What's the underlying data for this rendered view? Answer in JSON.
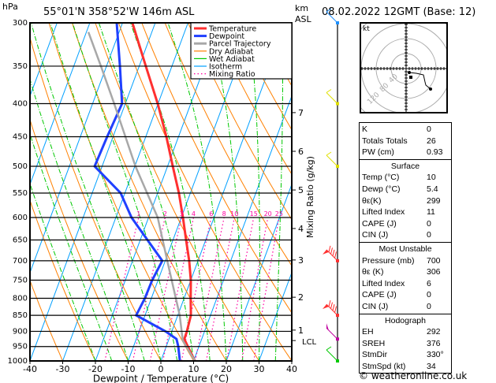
{
  "header": {
    "hpa": "hPa",
    "location": "55°01'N  358°52'W  146m  ASL",
    "km": "km",
    "asl": "ASL",
    "date": "08.02.2022 12GMT (Base: 12)"
  },
  "chart_data": {
    "type": "line",
    "subtype": "skew-T log-P",
    "xlabel": "Dewpoint / Temperature (°C)",
    "ylabel": "hPa",
    "right_label": "Mixing Ratio (g/kg)",
    "xlim": [
      -40,
      40
    ],
    "ylim": [
      1000,
      300
    ],
    "x_ticks": [
      -40,
      -30,
      -20,
      -10,
      0,
      10,
      20,
      30,
      40
    ],
    "pressure_ticks": [
      300,
      350,
      400,
      450,
      500,
      550,
      600,
      650,
      700,
      750,
      800,
      850,
      900,
      950,
      1000
    ],
    "km_ticks": [
      {
        "km": "1",
        "p": 896
      },
      {
        "km": "2",
        "p": 797
      },
      {
        "km": "3",
        "p": 698
      },
      {
        "km": "4",
        "p": 624
      },
      {
        "km": "5",
        "p": 544
      },
      {
        "km": "6",
        "p": 474
      },
      {
        "km": "7",
        "p": 413
      }
    ],
    "lcl": {
      "label": "LCL",
      "p": 930
    },
    "mixing_ratio_labels": [
      1,
      2,
      3,
      4,
      6,
      8,
      10,
      15,
      20,
      25
    ],
    "legend": {
      "placement": "top-right",
      "entries": [
        {
          "name": "Temperature",
          "color": "#ff3030"
        },
        {
          "name": "Dewpoint",
          "color": "#2040ff"
        },
        {
          "name": "Parcel Trajectory",
          "color": "#a8a8a8"
        },
        {
          "name": "Dry Adiabat",
          "color": "#ff8000"
        },
        {
          "name": "Wet Adiabat",
          "color": "#00c800"
        },
        {
          "name": "Isotherm",
          "color": "#00a0ff"
        },
        {
          "name": "Mixing Ratio",
          "color": "#ff00a0"
        }
      ]
    },
    "series": [
      {
        "name": "Temperature",
        "color": "#ff3030",
        "p": [
          1000,
          950,
          925,
          900,
          850,
          800,
          750,
          700,
          650,
          600,
          550,
          500,
          450,
          400,
          350,
          300
        ],
        "t": [
          10.4,
          6.6,
          4.7,
          4.6,
          4,
          2,
          0,
          -2.7,
          -6,
          -9.5,
          -13.5,
          -18.4,
          -23.7,
          -30.1,
          -38,
          -47
        ]
      },
      {
        "name": "Dewpoint",
        "color": "#2040ff",
        "p": [
          1000,
          950,
          925,
          900,
          850,
          800,
          750,
          700,
          650,
          600,
          550,
          500,
          450,
          400,
          350,
          300
        ],
        "t": [
          5.8,
          3.7,
          2.3,
          -1.9,
          -12.7,
          -12,
          -11.8,
          -10.9,
          -17.8,
          -25.2,
          -31.3,
          -42.3,
          -41.8,
          -41,
          -45.9,
          -51.8
        ]
      },
      {
        "name": "Parcel Trajectory",
        "color": "#a8a8a8",
        "p": [
          1000,
          930,
          850,
          700,
          600,
          500,
          400,
          350,
          310
        ],
        "t": [
          10.4,
          4.4,
          0.6,
          -9.4,
          -17.2,
          -29.8,
          -43.4,
          -51.7,
          -59.4
        ]
      }
    ],
    "winds": [
      {
        "p": 300,
        "color": "#1e90ff",
        "barbs": "light"
      },
      {
        "p": 400,
        "color": "#e0e000",
        "barbs": "light"
      },
      {
        "p": 500,
        "color": "#e0e000",
        "barbs": "light"
      },
      {
        "p": 700,
        "color": "#ff3030",
        "barbs": "strong"
      },
      {
        "p": 850,
        "color": "#ff3030",
        "barbs": "strong"
      },
      {
        "p": 925,
        "color": "#c000a0",
        "barbs": "medium"
      },
      {
        "p": 1000,
        "color": "#00c800",
        "barbs": "light"
      }
    ],
    "hodograph": {
      "unit": "kt",
      "ring_labels": [
        "40",
        "80",
        "120"
      ]
    }
  },
  "stats": {
    "top": [
      {
        "k": "K",
        "v": "0"
      },
      {
        "k": "Totals Totals",
        "v": "26"
      },
      {
        "k": "PW (cm)",
        "v": "0.93"
      }
    ],
    "surface": {
      "title": "Surface",
      "rows": [
        {
          "k": "Temp (°C)",
          "v": "10"
        },
        {
          "k": "Dewp (°C)",
          "v": "5.4"
        },
        {
          "k": "θε(K)",
          "v": "299"
        },
        {
          "k": "Lifted Index",
          "v": "11"
        },
        {
          "k": "CAPE (J)",
          "v": "0"
        },
        {
          "k": "CIN (J)",
          "v": "0"
        }
      ]
    },
    "unstable": {
      "title": "Most Unstable",
      "rows": [
        {
          "k": "Pressure (mb)",
          "v": "700"
        },
        {
          "k": "θε (K)",
          "v": "306"
        },
        {
          "k": "Lifted Index",
          "v": "6"
        },
        {
          "k": "CAPE (J)",
          "v": "0"
        },
        {
          "k": "CIN (J)",
          "v": "0"
        }
      ]
    },
    "hodo": {
      "title": "Hodograph",
      "rows": [
        {
          "k": "EH",
          "v": "292"
        },
        {
          "k": "SREH",
          "v": "376"
        },
        {
          "k": "StmDir",
          "v": "330°"
        },
        {
          "k": "StmSpd (kt)",
          "v": "34"
        }
      ]
    }
  },
  "footer": "© weatheronline.co.uk"
}
